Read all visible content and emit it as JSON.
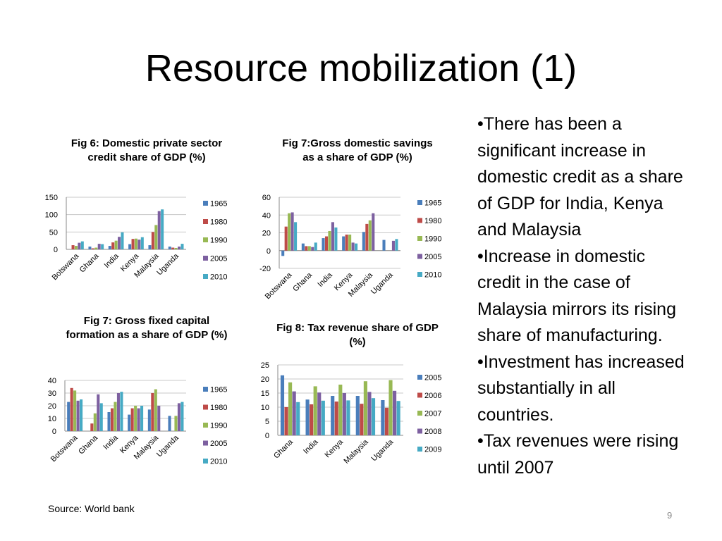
{
  "slide": {
    "title": "Resource mobilization (1)",
    "source": "Source: World bank",
    "page_number": "9",
    "bullets": [
      "•There has been a significant increase in domestic credit as a share of GDP for India, Kenya and Malaysia",
      "•Increase in domestic credit in the case of Malaysia mirrors its rising share of manufacturing.",
      "•Investment has increased substantially in all countries.",
      "•Tax revenues were rising until 2007"
    ]
  },
  "series_colors": [
    "#4a7ebb",
    "#be4b48",
    "#98b954",
    "#7d60a0",
    "#46aac4"
  ],
  "chart_data": [
    {
      "type": "bar",
      "title": "Fig 6: Domestic private sector credit share of GDP (%)",
      "categories": [
        "Botswana",
        "Ghana",
        "India",
        "Kenya",
        "Malaysia",
        "Uganda"
      ],
      "ylim": [
        0,
        150
      ],
      "yticks": [
        0,
        50,
        100,
        150
      ],
      "legend_position": "right",
      "series": [
        {
          "name": "1965",
          "values": [
            null,
            8,
            10,
            15,
            12,
            8
          ]
        },
        {
          "name": "1980",
          "values": [
            12,
            3,
            20,
            30,
            50,
            5
          ]
        },
        {
          "name": "1990",
          "values": [
            10,
            5,
            25,
            31,
            70,
            4
          ]
        },
        {
          "name": "2005",
          "values": [
            19,
            16,
            36,
            28,
            110,
            8
          ]
        },
        {
          "name": "2010",
          "values": [
            23,
            15,
            49,
            35,
            115,
            16
          ]
        }
      ]
    },
    {
      "type": "bar",
      "title": "Fig 7:Gross domestic savings as a share of GDP (%)",
      "categories": [
        "Botswana",
        "Ghana",
        "India",
        "Kenya",
        "Malaysia",
        "Uganda"
      ],
      "ylim": [
        -20,
        60
      ],
      "yticks": [
        -20,
        0,
        20,
        40,
        60
      ],
      "legend_position": "right",
      "series": [
        {
          "name": "1965",
          "values": [
            -6,
            8,
            14,
            16,
            21,
            12
          ]
        },
        {
          "name": "1980",
          "values": [
            27,
            5,
            16,
            18,
            30,
            null
          ]
        },
        {
          "name": "1990",
          "values": [
            42,
            5,
            22,
            18,
            34,
            null
          ]
        },
        {
          "name": "2005",
          "values": [
            43,
            4,
            32,
            9,
            42,
            11
          ]
        },
        {
          "name": "2010",
          "values": [
            32,
            9,
            26,
            8,
            null,
            13
          ]
        }
      ]
    },
    {
      "type": "bar",
      "title": "Fig 7: Gross fixed capital formation as a share of GDP (%)",
      "categories": [
        "Botswana",
        "Ghana",
        "India",
        "Kenya",
        "Malaysia",
        "Uganda"
      ],
      "ylim": [
        0,
        40
      ],
      "yticks": [
        0,
        10,
        20,
        30,
        40
      ],
      "legend_position": "right",
      "series": [
        {
          "name": "1965",
          "values": [
            23,
            null,
            15,
            13,
            17,
            12
          ]
        },
        {
          "name": "1980",
          "values": [
            34,
            6,
            18,
            18,
            30,
            null
          ]
        },
        {
          "name": "1990",
          "values": [
            32,
            14,
            23,
            20,
            33,
            12
          ]
        },
        {
          "name": "2005",
          "values": [
            24,
            29,
            30,
            18,
            20,
            22
          ]
        },
        {
          "name": "2010",
          "values": [
            25,
            22,
            31,
            20,
            null,
            23
          ]
        }
      ]
    },
    {
      "type": "bar",
      "title": "Fig 8: Tax revenue share of GDP (%)",
      "categories": [
        "Ghana",
        "India",
        "Kenya",
        "Malaysia",
        "Uganda"
      ],
      "ylim": [
        0,
        25
      ],
      "yticks": [
        0,
        5,
        10,
        15,
        20,
        25
      ],
      "legend_position": "right",
      "series": [
        {
          "name": "2005",
          "values": [
            21.3,
            12.7,
            14,
            14,
            12.5
          ]
        },
        {
          "name": "2006",
          "values": [
            10,
            11,
            12,
            11.2,
            9.8
          ]
        },
        {
          "name": "2007",
          "values": [
            18.8,
            17.4,
            18,
            19.2,
            19.6
          ]
        },
        {
          "name": "2008",
          "values": [
            15.6,
            15.2,
            15,
            15.4,
            15.8
          ]
        },
        {
          "name": "2009",
          "values": [
            11.8,
            12.3,
            12.4,
            13.2,
            12.2
          ]
        }
      ]
    }
  ]
}
